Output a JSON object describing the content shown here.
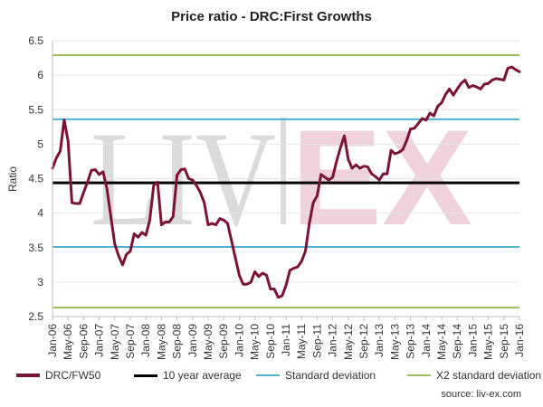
{
  "title": "Price ratio - DRC:First Growths",
  "source_text": "source: liv-ex.com",
  "watermark_text": "LIV-EX",
  "colors": {
    "series": "#7b1434",
    "average": "#000000",
    "stddev": "#4fb3cf",
    "stddev2": "#9cbb59",
    "grid": "#e6e6e6",
    "watermark_grey": "#d0d0d0",
    "watermark_pink": "#ecc8d3"
  },
  "legend": [
    {
      "label": "DRC/FW50",
      "color": "#7b1434"
    },
    {
      "label": "10 year average",
      "color": "#000000"
    },
    {
      "label": "Standard deviation",
      "color": "#4fb3cf"
    },
    {
      "label": "X2 standard deviation",
      "color": "#9cbb59"
    }
  ],
  "chart_data": {
    "type": "line",
    "title": "Price ratio - DRC:First Growths",
    "xlabel": "",
    "ylabel": "Ratio",
    "ylim": [
      2.5,
      6.5
    ],
    "yticks": [
      2.5,
      3,
      3.5,
      4,
      4.5,
      5,
      5.5,
      6,
      6.5
    ],
    "xlim": [
      "Jan-06",
      "Jan-16"
    ],
    "xticks": [
      "Jan-06",
      "May-06",
      "Sep-06",
      "Jan-07",
      "May-07",
      "Sep-07",
      "Jan-08",
      "May-08",
      "Sep-08",
      "Jan-09",
      "May-09",
      "Sep-09",
      "Jan-10",
      "May-10",
      "Sep-10",
      "Jan-11",
      "May-11",
      "Sep-11",
      "Jan-12",
      "May-12",
      "Sep-12",
      "Jan-13",
      "May-13",
      "Sep-13",
      "Jan-14",
      "May-14",
      "Sep-14",
      "Jan-15",
      "May-15",
      "Sep-15",
      "Jan-16"
    ],
    "grid": true,
    "legend_position": "bottom",
    "reference_lines": [
      {
        "name": "10 year average",
        "value": 4.44
      },
      {
        "name": "Standard deviation",
        "value": 5.36
      },
      {
        "name": "Standard deviation",
        "value": 3.51
      },
      {
        "name": "X2 standard deviation",
        "value": 6.29
      },
      {
        "name": "X2 standard deviation",
        "value": 2.63
      }
    ],
    "series": [
      {
        "name": "DRC/FW50",
        "x": [
          "Jan-06",
          "Feb-06",
          "Mar-06",
          "Apr-06",
          "May-06",
          "Jun-06",
          "Jul-06",
          "Aug-06",
          "Sep-06",
          "Oct-06",
          "Nov-06",
          "Dec-06",
          "Jan-07",
          "Feb-07",
          "Mar-07",
          "Apr-07",
          "May-07",
          "Jun-07",
          "Jul-07",
          "Aug-07",
          "Sep-07",
          "Oct-07",
          "Nov-07",
          "Dec-07",
          "Jan-08",
          "Feb-08",
          "Mar-08",
          "Apr-08",
          "May-08",
          "Jun-08",
          "Jul-08",
          "Aug-08",
          "Sep-08",
          "Oct-08",
          "Nov-08",
          "Dec-08",
          "Jan-09",
          "Feb-09",
          "Mar-09",
          "Apr-09",
          "May-09",
          "Jun-09",
          "Jul-09",
          "Aug-09",
          "Sep-09",
          "Oct-09",
          "Nov-09",
          "Dec-09",
          "Jan-10",
          "Feb-10",
          "Mar-10",
          "Apr-10",
          "May-10",
          "Jun-10",
          "Jul-10",
          "Aug-10",
          "Sep-10",
          "Oct-10",
          "Nov-10",
          "Dec-10",
          "Jan-11",
          "Feb-11",
          "Mar-11",
          "Apr-11",
          "May-11",
          "Jun-11",
          "Jul-11",
          "Aug-11",
          "Sep-11",
          "Oct-11",
          "Nov-11",
          "Dec-11",
          "Jan-12",
          "Feb-12",
          "Mar-12",
          "Apr-12",
          "May-12",
          "Jun-12",
          "Jul-12",
          "Aug-12",
          "Sep-12",
          "Oct-12",
          "Nov-12",
          "Dec-12",
          "Jan-13",
          "Feb-13",
          "Mar-13",
          "Apr-13",
          "May-13",
          "Jun-13",
          "Jul-13",
          "Aug-13",
          "Sep-13",
          "Oct-13",
          "Nov-13",
          "Dec-13",
          "Jan-14",
          "Feb-14",
          "Mar-14",
          "Apr-14",
          "May-14",
          "Jun-14",
          "Jul-14",
          "Aug-14",
          "Sep-14",
          "Oct-14",
          "Nov-14",
          "Dec-14",
          "Jan-15",
          "Feb-15",
          "Mar-15",
          "Apr-15",
          "May-15",
          "Jun-15",
          "Jul-15",
          "Aug-15",
          "Sep-15",
          "Oct-15",
          "Nov-15",
          "Dec-15",
          "Jan-16"
        ],
        "values": [
          4.65,
          4.8,
          4.9,
          5.35,
          5.05,
          4.15,
          4.14,
          4.14,
          4.3,
          4.45,
          4.62,
          4.63,
          4.56,
          4.6,
          4.35,
          3.95,
          3.55,
          3.38,
          3.25,
          3.4,
          3.45,
          3.7,
          3.65,
          3.72,
          3.68,
          3.9,
          4.4,
          4.45,
          3.83,
          3.87,
          3.87,
          3.95,
          4.55,
          4.63,
          4.64,
          4.5,
          4.48,
          4.4,
          4.3,
          4.15,
          3.83,
          3.85,
          3.83,
          3.92,
          3.9,
          3.85,
          3.6,
          3.35,
          3.1,
          2.97,
          2.97,
          3.0,
          3.15,
          3.08,
          3.13,
          3.1,
          2.9,
          2.9,
          2.78,
          2.8,
          2.95,
          3.17,
          3.2,
          3.22,
          3.3,
          3.45,
          3.85,
          4.15,
          4.25,
          4.56,
          4.52,
          4.48,
          4.52,
          4.75,
          4.95,
          5.12,
          4.78,
          4.65,
          4.7,
          4.65,
          4.68,
          4.67,
          4.57,
          4.53,
          4.48,
          4.57,
          4.57,
          4.91,
          4.86,
          4.88,
          4.92,
          5.05,
          5.22,
          5.23,
          5.3,
          5.37,
          5.35,
          5.45,
          5.41,
          5.55,
          5.6,
          5.72,
          5.8,
          5.71,
          5.8,
          5.88,
          5.93,
          5.82,
          5.85,
          5.83,
          5.8,
          5.87,
          5.88,
          5.93,
          5.95,
          5.94,
          5.93,
          6.1,
          6.12,
          6.08,
          6.05
        ]
      }
    ]
  }
}
